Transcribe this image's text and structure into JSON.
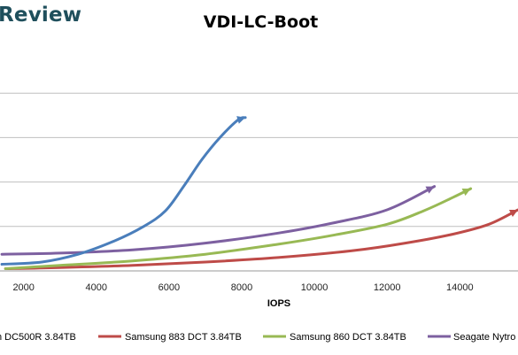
{
  "brand": "Review",
  "chart_data": {
    "type": "line",
    "title": "VDI-LC-Boot",
    "xlabel": "IOPS",
    "ylabel": "",
    "x_ticks": [
      2000,
      4000,
      6000,
      8000,
      10000,
      12000,
      14000
    ],
    "xlim": [
      1350,
      15600
    ],
    "ylim": [
      0,
      1
    ],
    "y_gridlines": [
      0.2,
      0.4,
      0.6,
      0.8
    ],
    "legend_position": "bottom",
    "series": [
      {
        "name": "n DC500R 3.84TB",
        "color": "#4a7ebb",
        "points": [
          [
            1400,
            0.03
          ],
          [
            2500,
            0.04
          ],
          [
            3500,
            0.075
          ],
          [
            4500,
            0.135
          ],
          [
            5300,
            0.2
          ],
          [
            5900,
            0.27
          ],
          [
            6400,
            0.38
          ],
          [
            6900,
            0.5
          ],
          [
            7400,
            0.6
          ],
          [
            7900,
            0.68
          ],
          [
            8100,
            0.69
          ]
        ]
      },
      {
        "name": "Samsung 883 DCT 3.84TB",
        "color": "#be4b48",
        "points": [
          [
            1500,
            0.01
          ],
          [
            3000,
            0.015
          ],
          [
            5000,
            0.025
          ],
          [
            7000,
            0.04
          ],
          [
            9000,
            0.06
          ],
          [
            11000,
            0.09
          ],
          [
            12500,
            0.125
          ],
          [
            13800,
            0.165
          ],
          [
            14800,
            0.21
          ],
          [
            15600,
            0.275
          ]
        ]
      },
      {
        "name": "Samsung 860 DCT 3.84TB",
        "color": "#98b954",
        "points": [
          [
            1500,
            0.01
          ],
          [
            3000,
            0.025
          ],
          [
            5000,
            0.045
          ],
          [
            7000,
            0.075
          ],
          [
            9000,
            0.12
          ],
          [
            10500,
            0.16
          ],
          [
            12000,
            0.21
          ],
          [
            13000,
            0.27
          ],
          [
            13800,
            0.33
          ],
          [
            14300,
            0.37
          ]
        ]
      },
      {
        "name": "Seagate Nytro",
        "color": "#7d60a0",
        "points": [
          [
            1400,
            0.075
          ],
          [
            3000,
            0.08
          ],
          [
            5000,
            0.095
          ],
          [
            7000,
            0.125
          ],
          [
            9000,
            0.17
          ],
          [
            10500,
            0.215
          ],
          [
            12000,
            0.275
          ],
          [
            13300,
            0.38
          ]
        ]
      }
    ]
  }
}
